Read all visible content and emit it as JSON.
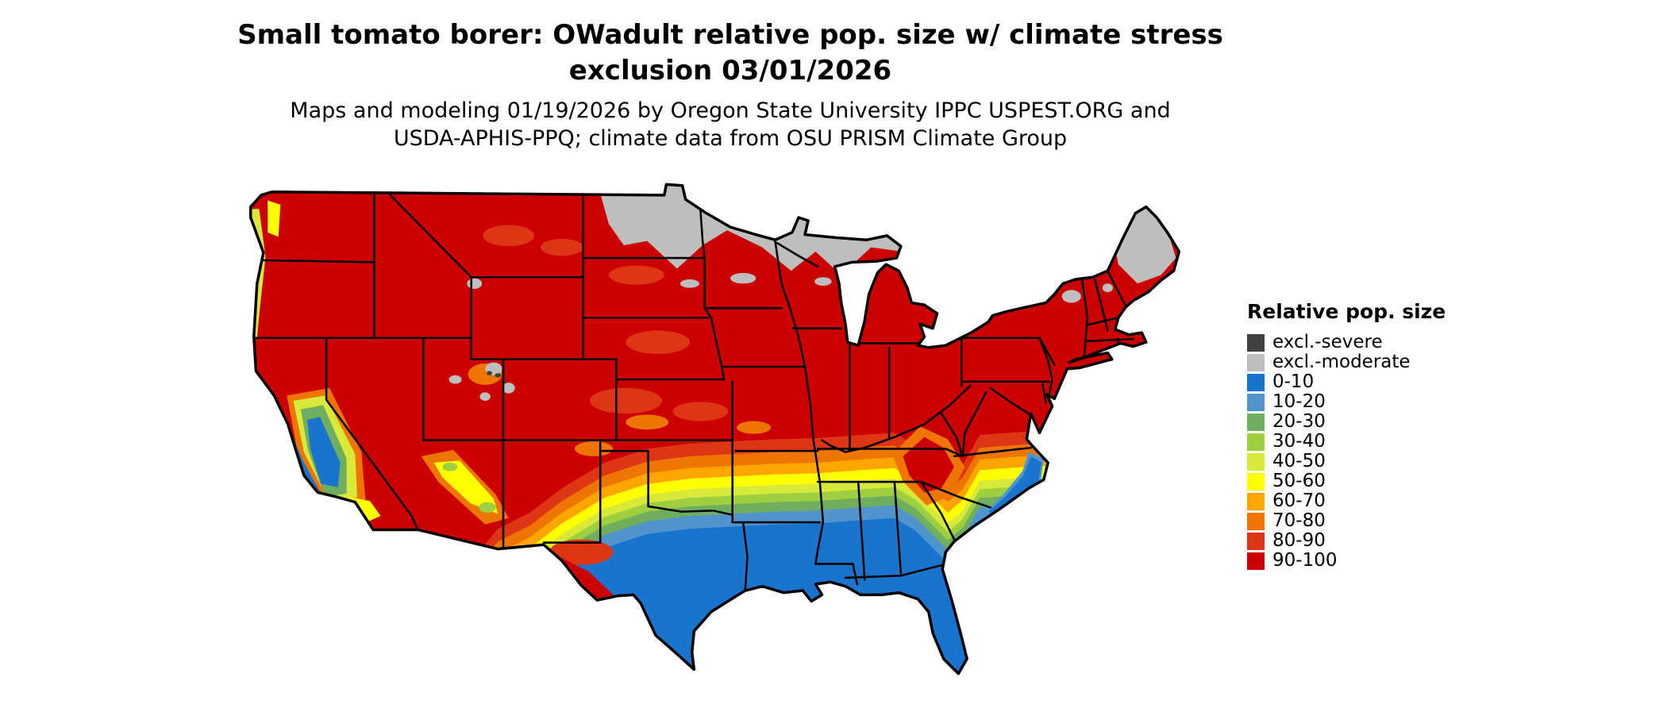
{
  "title": {
    "line1": "Small tomato borer: OWadult relative pop. size w/ climate stress",
    "line2": "exclusion 03/01/2026"
  },
  "subtitle": {
    "line1": "Maps and modeling 01/19/2026 by Oregon State University IPPC USPEST.ORG and",
    "line2": "USDA-APHIS-PPQ; climate data from OSU PRISM Climate Group"
  },
  "legend": {
    "title": "Relative pop. size",
    "items": [
      {
        "label": "excl.-severe",
        "color": "#404040"
      },
      {
        "label": "excl.-moderate",
        "color": "#bebebe"
      },
      {
        "label": "0-10",
        "color": "#1874cd"
      },
      {
        "label": "10-20",
        "color": "#4f94cd"
      },
      {
        "label": "20-30",
        "color": "#6fae5e"
      },
      {
        "label": "30-40",
        "color": "#9ecf3f"
      },
      {
        "label": "40-50",
        "color": "#d8e93a"
      },
      {
        "label": "50-60",
        "color": "#ffff00"
      },
      {
        "label": "60-70",
        "color": "#ffa500"
      },
      {
        "label": "70-80",
        "color": "#ee7600"
      },
      {
        "label": "80-90",
        "color": "#de3515"
      },
      {
        "label": "90-100",
        "color": "#cc0000"
      }
    ]
  },
  "chart_data": {
    "type": "heatmap",
    "title": "Small tomato borer: OWadult relative pop. size w/ climate stress exclusion 03/01/2026",
    "region": "Continental United States",
    "legend_title": "Relative pop. size",
    "categories": [
      "excl.-severe",
      "excl.-moderate",
      "0-10",
      "10-20",
      "20-30",
      "30-40",
      "40-50",
      "50-60",
      "60-70",
      "70-80",
      "80-90",
      "90-100"
    ],
    "colors": [
      "#404040",
      "#bebebe",
      "#1874cd",
      "#4f94cd",
      "#6fae5e",
      "#9ecf3f",
      "#d8e93a",
      "#ffff00",
      "#ffa500",
      "#ee7600",
      "#de3515",
      "#cc0000"
    ],
    "regions": {
      "northern_plains_and_upper_midwest": "excl.-moderate",
      "northern_maine": "excl.-moderate",
      "most_of_north_and_west": "90-100",
      "central_transition_band_oklahoma_arkansas_tennessee": "50-60 to 80-90 gradient",
      "south_texas_gulf_coast_florida_southeast_coastal_plain": "0-10",
      "california_central_valley_and_pacific_coast": "0-50 mosaic",
      "southern_appalachian_ridge": "80-100 tongue extending south"
    },
    "legend_position": "right",
    "grid": false
  }
}
